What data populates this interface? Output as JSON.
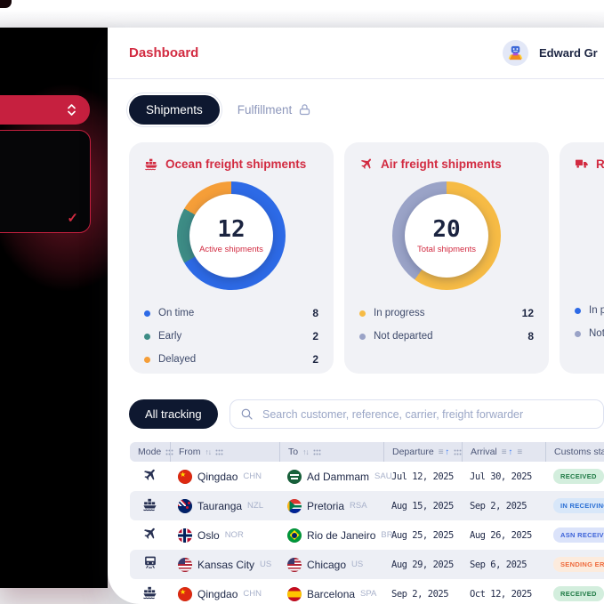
{
  "header": {
    "title": "Dashboard",
    "user": {
      "name": "Edward Gr",
      "avatar": "robot-avatar"
    }
  },
  "sidebar": {
    "select_pill": {
      "icon": "chevron-up-down",
      "color": "#c6203f"
    },
    "dropdown": {
      "border_color": "#c6203f"
    }
  },
  "icons": {
    "dropdown_check": "✓",
    "column_sort": "↑↓",
    "column_sort_lines": "≡",
    "column_sort_arrow": "↑",
    "column_menu": "≡"
  },
  "tabs": [
    {
      "label": "Shipments",
      "active": true
    },
    {
      "label": "Fulfillment",
      "active": false,
      "locked": true
    }
  ],
  "cards": [
    {
      "icon": "cargo-ship-icon",
      "title": "Ocean freight shipments",
      "center": {
        "value": "12",
        "label": "Active shipments"
      },
      "donut": {
        "values": [
          8,
          2,
          2
        ],
        "colors": [
          "#2d6ae6",
          "#3d8c85",
          "#f59e38"
        ]
      },
      "legend": [
        {
          "label": "On time",
          "value": "8",
          "color": "#2d6ae6"
        },
        {
          "label": "Early",
          "value": "2",
          "color": "#3d8c85"
        },
        {
          "label": "Delayed",
          "value": "2",
          "color": "#f59e38"
        }
      ]
    },
    {
      "icon": "airplane-icon",
      "title": "Air freight shipments",
      "center": {
        "value": "20",
        "label": "Total shipments"
      },
      "donut": {
        "values": [
          12,
          8
        ],
        "colors": [
          "#f6bb45",
          "#9aa3c7"
        ]
      },
      "legend": [
        {
          "label": "In progress",
          "value": "12",
          "color": "#f6bb45"
        },
        {
          "label": "Not departed",
          "value": "8",
          "color": "#9aa3c7"
        }
      ]
    },
    {
      "icon": "truck-icon",
      "title": "Road freight shipments",
      "legend": [
        {
          "label": "In progress",
          "value": "",
          "color": "#2d6ae6"
        },
        {
          "label": "Not departed",
          "value": "",
          "color": "#9aa3c7"
        }
      ]
    }
  ],
  "chart_data": [
    {
      "type": "pie",
      "title": "Ocean freight shipments",
      "categories": [
        "On time",
        "Early",
        "Delayed"
      ],
      "values": [
        8,
        2,
        2
      ],
      "center_value": 12,
      "center_label": "Active shipments",
      "colors": [
        "#2d6ae6",
        "#3d8c85",
        "#f59e38"
      ],
      "legend_position": "bottom"
    },
    {
      "type": "pie",
      "title": "Air freight shipments",
      "categories": [
        "In progress",
        "Not departed"
      ],
      "values": [
        12,
        8
      ],
      "center_value": 20,
      "center_label": "Total shipments",
      "colors": [
        "#f6bb45",
        "#9aa3c7"
      ],
      "legend_position": "bottom"
    }
  ],
  "tracking": {
    "filter_label": "All tracking",
    "search_placeholder": "Search customer, reference, carrier, freight forwarder"
  },
  "table": {
    "columns": [
      {
        "label": "Mode",
        "icons": [
          "grid"
        ]
      },
      {
        "label": "From",
        "icons": [
          "updown",
          "grid"
        ]
      },
      {
        "label": "To",
        "icons": [
          "updown",
          "grid"
        ]
      },
      {
        "label": "Departure",
        "icons": [
          "sort",
          "grid"
        ]
      },
      {
        "label": "Arrival",
        "icons": [
          "sort",
          "lines"
        ]
      },
      {
        "label": "Customs status",
        "icons": []
      }
    ],
    "rows": [
      {
        "mode": "air",
        "from": {
          "flag": "chn",
          "city": "Qingdao",
          "code": "CHN"
        },
        "to": {
          "flag": "sau",
          "city": "Ad Dammam",
          "code": "SAU"
        },
        "departure": "Jul 12, 2025",
        "arrival": "Jul 30, 2025",
        "status": {
          "label": "RECEIVED",
          "type": "green"
        }
      },
      {
        "mode": "ocean",
        "from": {
          "flag": "nzl",
          "city": "Tauranga",
          "code": "NZL"
        },
        "to": {
          "flag": "rsa",
          "city": "Pretoria",
          "code": "RSA"
        },
        "departure": "Aug 15, 2025",
        "arrival": "Sep 2, 2025",
        "status": {
          "label": "IN RECEIVING",
          "type": "blue"
        }
      },
      {
        "mode": "air",
        "from": {
          "flag": "nor",
          "city": "Oslo",
          "code": "NOR"
        },
        "to": {
          "flag": "bra",
          "city": "Rio de Janeiro",
          "code": "BR"
        },
        "departure": "Aug 25, 2025",
        "arrival": "Aug 26, 2025",
        "status": {
          "label": "ASN RECEIVED",
          "type": "indigo"
        }
      },
      {
        "mode": "rail",
        "from": {
          "flag": "usa",
          "city": "Kansas City",
          "code": "US"
        },
        "to": {
          "flag": "usa",
          "city": "Chicago",
          "code": "US"
        },
        "departure": "Aug 29, 2025",
        "arrival": "Sep 6, 2025",
        "status": {
          "label": "SENDING ERROR",
          "type": "orange"
        }
      },
      {
        "mode": "ocean",
        "from": {
          "flag": "chn",
          "city": "Qingdao",
          "code": "CHN"
        },
        "to": {
          "flag": "esp",
          "city": "Barcelona",
          "code": "SPA"
        },
        "departure": "Sep 2, 2025",
        "arrival": "Oct 12, 2025",
        "status": {
          "label": "RECEIVED",
          "type": "green"
        }
      }
    ],
    "status_colors": {
      "green": {
        "bg": "#d3eedd",
        "fg": "#1f7a45"
      },
      "blue": {
        "bg": "#d8e7f9",
        "fg": "#2a6fd4"
      },
      "indigo": {
        "bg": "#dbe3fa",
        "fg": "#3d63d9"
      },
      "orange": {
        "bg": "#fcebdd",
        "fg": "#ee6a3c"
      }
    }
  }
}
